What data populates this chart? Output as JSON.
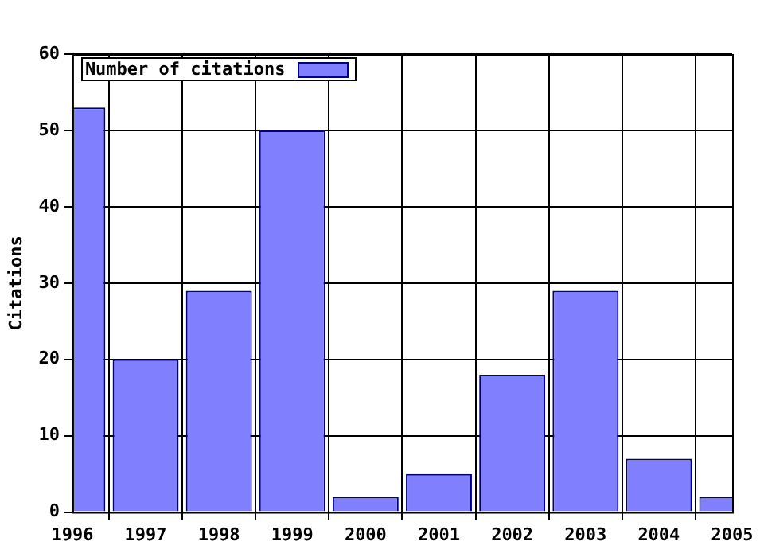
{
  "chart_data": {
    "type": "bar",
    "ylabel": "Citations",
    "x": [
      1996,
      1997,
      1998,
      1999,
      2000,
      2001,
      2002,
      2003,
      2004,
      2005
    ],
    "series": [
      {
        "name": "Number of citations",
        "color": "#8080ff",
        "values": [
          53,
          20,
          29,
          50,
          2,
          5,
          18,
          29,
          7,
          2
        ]
      }
    ],
    "xlim": [
      1996,
      2005
    ],
    "xticks": [
      1996,
      1997,
      1998,
      1999,
      2000,
      2001,
      2002,
      2003,
      2004,
      2005
    ],
    "ylim": [
      0,
      60
    ],
    "yticks": [
      0,
      10,
      20,
      30,
      40,
      50,
      60
    ],
    "grid": true,
    "legend": "top left"
  }
}
